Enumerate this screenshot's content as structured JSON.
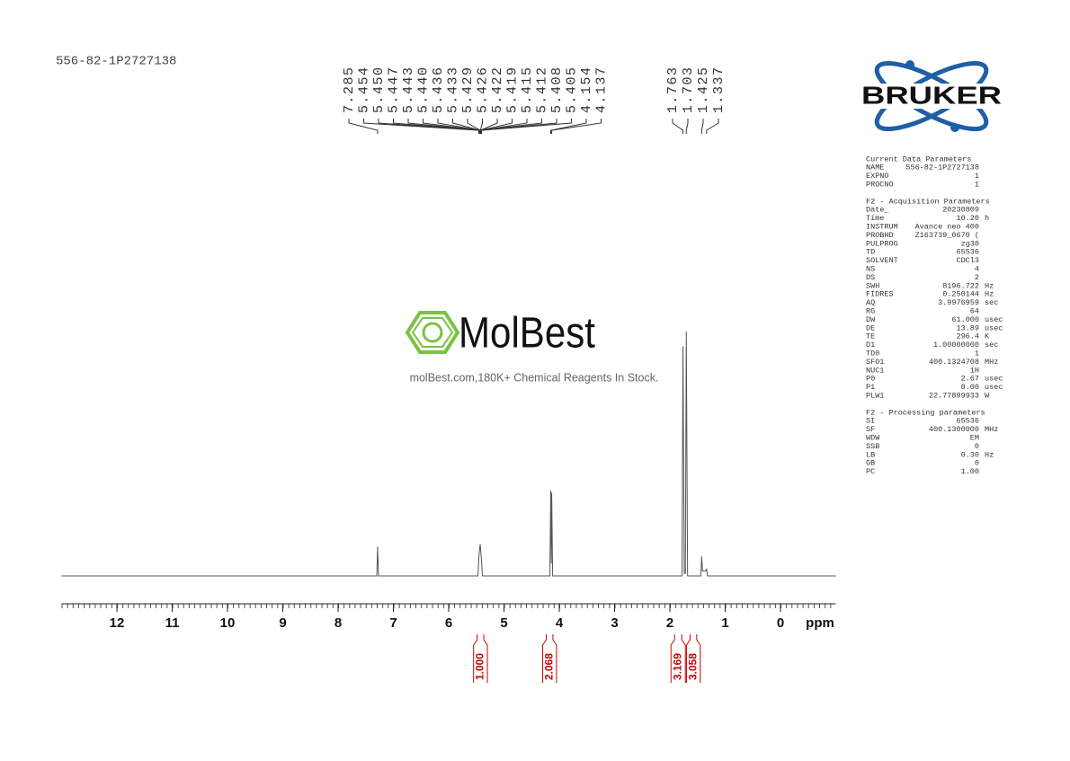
{
  "sample_name": "556-82-1P2727138",
  "chart_data": {
    "type": "line",
    "x": [
      13,
      7.3,
      7.285,
      7.27,
      5.47,
      5.454,
      5.44,
      5.43,
      5.42,
      5.405,
      5.39,
      4.17,
      4.154,
      4.145,
      4.137,
      4.12,
      1.78,
      1.763,
      1.74,
      1.72,
      1.703,
      1.68,
      1.44,
      1.425,
      1.41,
      1.35,
      1.337,
      1.32,
      -1
    ],
    "values": [
      0,
      0,
      12,
      0,
      0,
      8,
      11,
      13,
      10,
      6,
      0,
      0,
      35,
      5,
      34,
      0,
      0,
      94,
      1,
      1,
      100,
      0,
      0,
      8,
      2,
      2,
      3,
      0,
      0
    ],
    "color": "#555555",
    "xlim": [
      13,
      -1
    ],
    "xticks": [
      12,
      11,
      10,
      9,
      8,
      7,
      6,
      5,
      4,
      3,
      2,
      1,
      0
    ],
    "xlabel": "ppm",
    "peak_labels": [
      7.285,
      5.454,
      {
        "value": 5.45,
        "label": "5.450"
      },
      5.447,
      5.443,
      {
        "value": 5.44,
        "label": "5.440"
      },
      5.436,
      5.433,
      5.429,
      5.426,
      5.422,
      5.419,
      5.415,
      5.412,
      5.408,
      5.405,
      4.154,
      4.137,
      1.763,
      1.703,
      1.425,
      1.337
    ],
    "integrals": [
      {
        "value": 1,
        "label": "1.000",
        "from": 5.55,
        "to": 5.3
      },
      {
        "value": 2.068,
        "label": "2.068",
        "from": 4.3,
        "to": 4.05
      },
      {
        "value": 3.169,
        "label": "3.169",
        "from": 1.98,
        "to": 1.72
      },
      {
        "value": 3.058,
        "label": "3.058",
        "from": 1.7,
        "to": 1.45
      }
    ]
  },
  "watermark": {
    "brand": "MolBest",
    "tagline": "molBest.com,180K+ Chemical Reagents In Stock."
  },
  "logo": "BRUKER",
  "parameters": [
    {
      "title": "Current Data Parameters",
      "rows": [
        [
          "NAME",
          "556-82-1P2727138"
        ],
        [
          "EXPNO",
          "1"
        ],
        [
          "PROCNO",
          "1"
        ]
      ]
    },
    {
      "title": "F2 - Acquisition Parameters",
      "rows": [
        [
          "Date_",
          "20230809"
        ],
        [
          "Time",
          "10.20",
          "h"
        ],
        [
          "INSTRUM",
          "Avance neo 400"
        ],
        [
          "PROBHD",
          "Z163739_0670 ("
        ],
        [
          "PULPROG",
          "zg30"
        ],
        [
          "TD",
          "65536"
        ],
        [
          "SOLVENT",
          "CDCl3"
        ],
        [
          "NS",
          "4"
        ],
        [
          "DS",
          "2"
        ],
        [
          "SWH",
          "8196.722",
          "Hz"
        ],
        [
          "FIDRES",
          "0.250144",
          "Hz"
        ],
        [
          "AQ",
          "3.9976959",
          "sec"
        ],
        [
          "RG",
          "64"
        ],
        [
          "DW",
          "61.000",
          "usec"
        ],
        [
          "DE",
          "13.89",
          "usec"
        ],
        [
          "TE",
          "296.4",
          "K"
        ],
        [
          "D1",
          "1.00000000",
          "sec"
        ],
        [
          "TD0",
          "1"
        ],
        [
          "SFO1",
          "400.1324708",
          "MHz"
        ],
        [
          "NUC1",
          "1H"
        ],
        [
          "P0",
          "2.67",
          "usec"
        ],
        [
          "P1",
          "8.00",
          "usec"
        ],
        [
          "PLW1",
          "22.77899933",
          "W"
        ]
      ]
    },
    {
      "title": "F2 - Processing parameters",
      "rows": [
        [
          "SI",
          "65536"
        ],
        [
          "SF",
          "400.1300000",
          "MHz"
        ],
        [
          "WDW",
          "EM"
        ],
        [
          "SSB",
          "0"
        ],
        [
          "LB",
          "0.30",
          "Hz"
        ],
        [
          "GB",
          "0"
        ],
        [
          "PC",
          "1.00"
        ]
      ]
    }
  ]
}
